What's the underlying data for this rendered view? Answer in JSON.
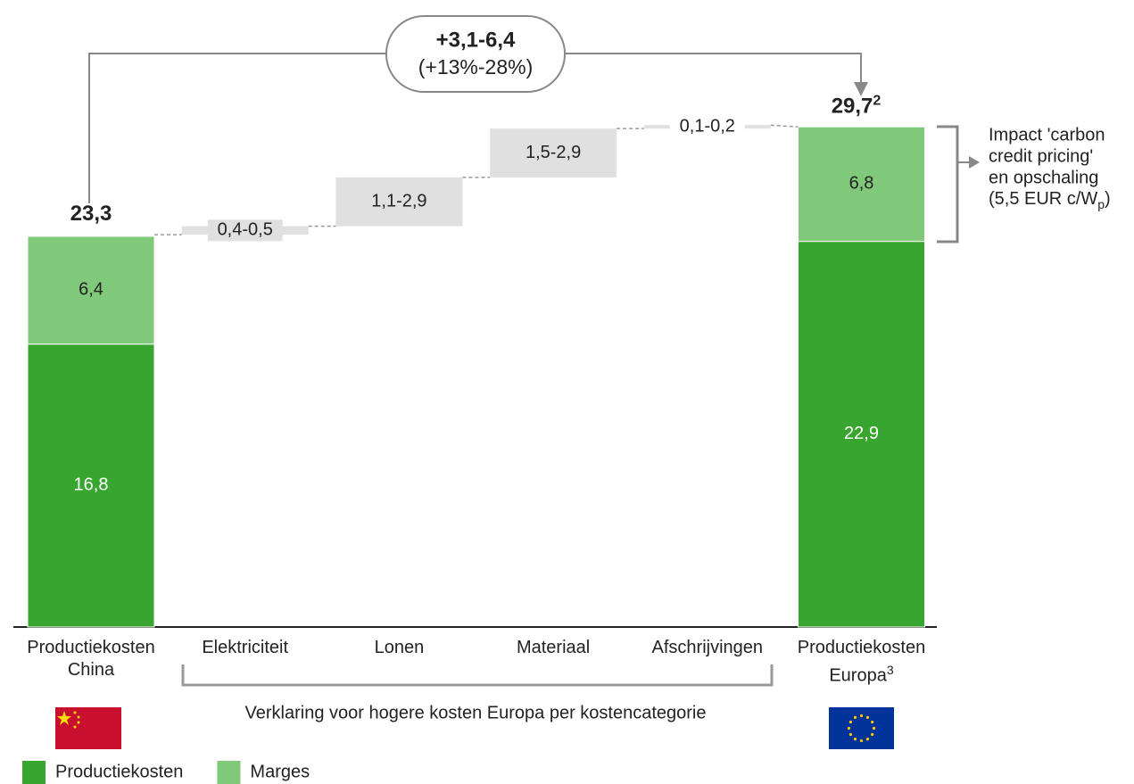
{
  "chart_data": {
    "type": "waterfall",
    "categories": [
      "Productiekosten China",
      "Elektriciteit",
      "Lonen",
      "Materiaal",
      "Afschrijvingen",
      "Productiekosten Europa"
    ],
    "category_footnote": "3",
    "series": [
      {
        "name": "Productiekosten",
        "color": "#38a52f",
        "values": [
          16.8,
          null,
          null,
          null,
          null,
          22.9
        ],
        "value_labels": [
          "16,8",
          null,
          null,
          null,
          null,
          "22,9"
        ]
      },
      {
        "name": "Marges",
        "color": "#80c87a",
        "values": [
          6.4,
          null,
          null,
          null,
          null,
          6.8
        ],
        "value_labels": [
          "6,4",
          null,
          null,
          null,
          null,
          "6,8"
        ]
      }
    ],
    "totals": {
      "values": [
        23.3,
        null,
        null,
        null,
        null,
        29.7
      ],
      "value_labels": [
        "23,3",
        null,
        null,
        null,
        null,
        "29,7"
      ],
      "footnote": "2"
    },
    "ranges": {
      "color": "#e0e0e0",
      "low": [
        null,
        0.4,
        1.1,
        1.5,
        0.1,
        null
      ],
      "high": [
        null,
        0.5,
        2.9,
        2.9,
        0.2,
        null
      ],
      "value_labels": [
        null,
        "0,4-0,5",
        "1,1-2,9",
        "1,5-2,9",
        "0,1-0,2",
        null
      ]
    },
    "difference": {
      "range": "+3,1-6,4",
      "percent": "(+13%-28%)"
    },
    "bracket_label": "Verklaring voor hogere kosten Europa per kostencategorie",
    "annotation": {
      "lines": [
        "Impact 'carbon",
        "credit pricing'",
        "en opschaling"
      ],
      "last_line": "(5,5 EUR c/W",
      "subscript": "p",
      "close": ")"
    }
  }
}
